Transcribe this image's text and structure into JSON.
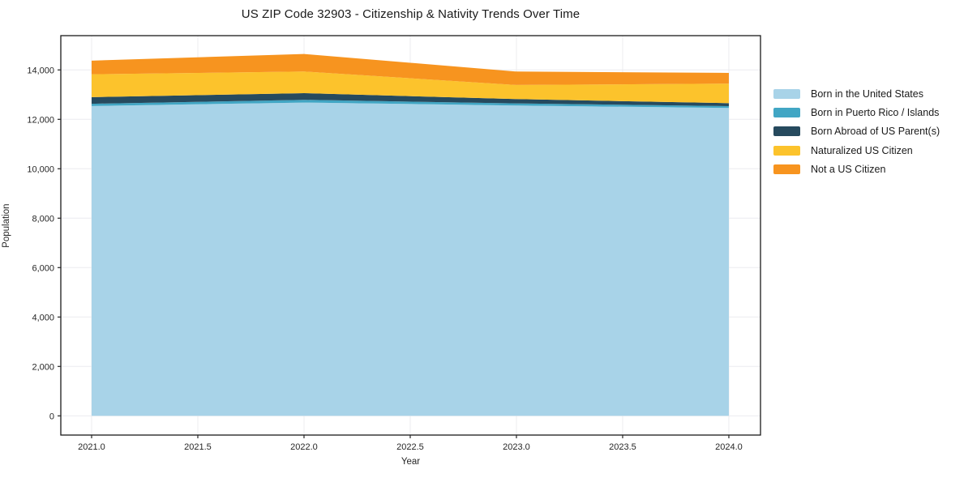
{
  "chart_data": {
    "type": "area",
    "stacked": true,
    "title": "US ZIP Code 32903 - Citizenship & Nativity Trends Over Time",
    "xlabel": "Year",
    "ylabel": "Population",
    "x": [
      2021,
      2022,
      2023,
      2024
    ],
    "series": [
      {
        "name": "Born in the United States",
        "color": "#a8d3e8",
        "values": [
          12540,
          12680,
          12560,
          12460
        ]
      },
      {
        "name": "Born in Puerto Rico / Islands",
        "color": "#41a6c4",
        "values": [
          90,
          110,
          85,
          75
        ]
      },
      {
        "name": "Born Abroad of US Parent(s)",
        "color": "#264a5e",
        "values": [
          270,
          270,
          175,
          120
        ]
      },
      {
        "name": "Naturalized US Citizen",
        "color": "#fcc32c",
        "values": [
          925,
          875,
          570,
          790
        ]
      },
      {
        "name": "Not a US Citizen",
        "color": "#f7941f",
        "values": [
          550,
          710,
          545,
          435
        ]
      }
    ],
    "totals": [
      14375,
      14645,
      13935,
      13880
    ],
    "x_ticks": [
      2021.0,
      2021.5,
      2022.0,
      2022.5,
      2023.0,
      2023.5,
      2024.0
    ],
    "y_ticks": [
      0,
      2000,
      4000,
      6000,
      8000,
      10000,
      12000,
      14000
    ],
    "xlim": [
      2020.855,
      2024.149
    ],
    "ylim": [
      -777,
      15387
    ],
    "grid": true,
    "grid_color": "#ececef",
    "spine_color": "#1a1a1a",
    "tick_color": "#262626",
    "legend_position": "right"
  }
}
